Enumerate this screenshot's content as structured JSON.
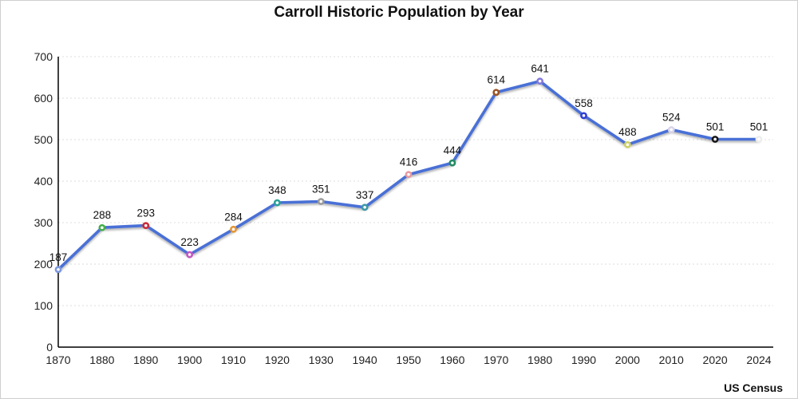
{
  "title": "Carroll Historic Population by Year",
  "source": "US Census",
  "chart_data": {
    "type": "line",
    "title": "Carroll Historic Population by Year",
    "categories": [
      "1870",
      "1880",
      "1890",
      "1900",
      "1910",
      "1920",
      "1930",
      "1940",
      "1950",
      "1960",
      "1970",
      "1980",
      "1990",
      "2000",
      "2010",
      "2020",
      "2024"
    ],
    "values": [
      187,
      288,
      293,
      223,
      284,
      348,
      351,
      337,
      416,
      444,
      614,
      641,
      558,
      488,
      524,
      501,
      501
    ],
    "xlabel": "",
    "ylabel": "",
    "ylim": [
      0,
      700
    ],
    "ytick_step": 100,
    "grid": true,
    "legend": "none",
    "line_color": "#4a6fd6",
    "marker_colors": [
      "#7b97e0",
      "#45b04a",
      "#cc2936",
      "#c257c2",
      "#e59531",
      "#2aa198",
      "#9a9a9a",
      "#3d99a8",
      "#e79a9e",
      "#228b63",
      "#9c5221",
      "#8379dd",
      "#2f3fd4",
      "#cfd06a",
      "#d9d3ea",
      "#141414",
      "#ededed"
    ],
    "axis_color": "#000000",
    "grid_color": "#dcdcdc",
    "data_label_color": "#111111"
  }
}
